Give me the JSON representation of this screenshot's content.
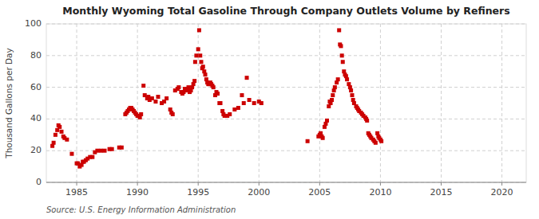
{
  "chart_data": {
    "type": "scatter",
    "title": "Monthly Wyoming Total Gasoline Through Company Outlets Volume by Refiners",
    "ylabel": "Thousand Gallons per Day",
    "annotation": "Source: U.S. Energy Information Administration",
    "color": "#cc0000",
    "marker": "square",
    "grid": true,
    "xlim": [
      1982.5,
      2022
    ],
    "ylim": [
      0,
      100
    ],
    "xticks": [
      1985,
      1990,
      1995,
      2000,
      2005,
      2010,
      2015,
      2020
    ],
    "yticks": [
      0,
      20,
      40,
      60,
      80,
      100
    ],
    "x": [
      1983.0,
      1983.1,
      1983.25,
      1983.4,
      1983.5,
      1983.6,
      1983.75,
      1983.9,
      1984.0,
      1984.2,
      1984.6,
      1985.0,
      1985.1,
      1985.25,
      1985.4,
      1985.5,
      1985.6,
      1985.75,
      1985.9,
      1986.1,
      1986.3,
      1986.5,
      1986.7,
      1987.0,
      1987.3,
      1987.7,
      1987.9,
      1988.5,
      1988.7,
      1989.0,
      1989.1,
      1989.2,
      1989.3,
      1989.4,
      1989.5,
      1989.6,
      1989.7,
      1989.8,
      1989.9,
      1990.0,
      1990.1,
      1990.2,
      1990.3,
      1990.5,
      1990.6,
      1990.8,
      1990.9,
      1991.0,
      1991.2,
      1991.5,
      1991.7,
      1992.0,
      1992.2,
      1992.4,
      1992.7,
      1992.8,
      1992.9,
      1993.1,
      1993.3,
      1993.4,
      1993.6,
      1993.7,
      1993.8,
      1993.9,
      1994.0,
      1994.1,
      1994.2,
      1994.3,
      1994.4,
      1994.5,
      1994.6,
      1994.7,
      1994.75,
      1994.85,
      1995.0,
      1995.08,
      1995.17,
      1995.25,
      1995.33,
      1995.4,
      1995.5,
      1995.58,
      1995.67,
      1995.75,
      1995.83,
      1995.9,
      1996.0,
      1996.08,
      1996.17,
      1996.25,
      1996.4,
      1996.5,
      1996.6,
      1996.75,
      1996.83,
      1997.0,
      1997.08,
      1997.17,
      1997.4,
      1997.6,
      1998.0,
      1998.3,
      1998.6,
      1998.75,
      1999.0,
      1999.2,
      1999.6,
      2000.0,
      2000.2,
      2004.0,
      2004.9,
      2005.0,
      2005.08,
      2005.17,
      2005.25,
      2005.4,
      2005.5,
      2005.6,
      2005.75,
      2005.83,
      2005.9,
      2006.0,
      2006.08,
      2006.17,
      2006.25,
      2006.4,
      2006.5,
      2006.6,
      2006.67,
      2006.75,
      2006.83,
      2006.9,
      2007.0,
      2007.08,
      2007.17,
      2007.25,
      2007.4,
      2007.5,
      2007.58,
      2007.67,
      2007.75,
      2007.83,
      2008.0,
      2008.08,
      2008.17,
      2008.25,
      2008.4,
      2008.5,
      2008.6,
      2008.75,
      2008.83,
      2008.9,
      2009.0,
      2009.08,
      2009.17,
      2009.25,
      2009.4,
      2009.5,
      2009.6,
      2009.75,
      2009.83,
      2009.9,
      2010.0,
      2010.08
    ],
    "values": [
      23,
      25,
      30,
      33,
      36,
      35,
      32,
      29,
      28,
      27,
      18,
      12,
      12,
      10,
      11,
      13,
      13,
      14,
      15,
      16,
      16,
      19,
      20,
      20,
      20,
      21,
      21,
      22,
      22,
      43,
      44,
      45,
      46,
      47,
      47,
      46,
      45,
      44,
      43,
      42,
      42,
      41,
      43,
      61,
      55,
      53,
      54,
      52,
      53,
      51,
      54,
      50,
      51,
      53,
      46,
      44,
      43,
      58,
      59,
      60,
      57,
      56,
      57,
      59,
      58,
      59,
      60,
      57,
      58,
      60,
      62,
      64,
      76,
      80,
      84,
      96,
      80,
      76,
      72,
      73,
      70,
      68,
      65,
      63,
      62,
      62,
      63,
      62,
      61,
      60,
      55,
      57,
      56,
      50,
      50,
      45,
      43,
      42,
      42,
      43,
      46,
      47,
      55,
      50,
      66,
      52,
      50,
      51,
      50,
      26,
      29,
      30,
      31,
      29,
      28,
      35,
      37,
      39,
      48,
      51,
      50,
      52,
      55,
      58,
      60,
      63,
      65,
      96,
      87,
      86,
      80,
      76,
      70,
      68,
      67,
      65,
      62,
      60,
      58,
      55,
      52,
      50,
      48,
      47,
      46,
      45,
      44,
      43,
      42,
      41,
      40,
      39,
      31,
      30,
      29,
      28,
      27,
      26,
      25,
      31,
      29,
      28,
      27,
      26
    ]
  }
}
